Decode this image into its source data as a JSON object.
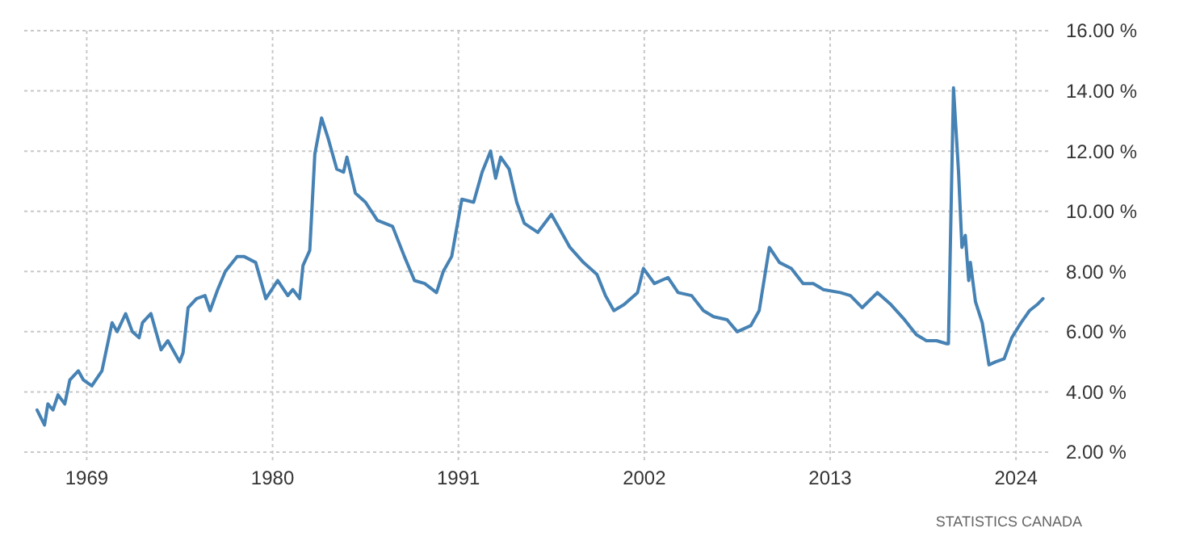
{
  "chart_data": {
    "type": "line",
    "xlim": [
      1965.3,
      2026
    ],
    "xticks": [
      1969,
      1980,
      1991,
      2002,
      2013,
      2024
    ],
    "ylim": [
      2,
      16
    ],
    "yticks": [
      {
        "value": 2,
        "label": "2.00 %"
      },
      {
        "value": 4,
        "label": "4.00 %"
      },
      {
        "value": 6,
        "label": "6.00 %"
      },
      {
        "value": 8,
        "label": "8.00 %"
      },
      {
        "value": 10,
        "label": "10.00 %"
      },
      {
        "value": 12,
        "label": "12.00 %"
      },
      {
        "value": 14,
        "label": "14.00 %"
      },
      {
        "value": 16,
        "label": "16.00 %"
      }
    ],
    "grid": true,
    "annotations": [
      "STATISTICS CANADA"
    ],
    "series": [
      {
        "color": "#4682b4",
        "x": [
          1966.06,
          1966.5,
          1966.7,
          1967.0,
          1967.3,
          1967.7,
          1968.0,
          1968.5,
          1968.8,
          1969.3,
          1969.9,
          1970.5,
          1970.8,
          1971.3,
          1971.7,
          1972.1,
          1972.3,
          1972.8,
          1973.4,
          1973.8,
          1974.2,
          1974.5,
          1974.7,
          1975.0,
          1975.5,
          1976.0,
          1976.3,
          1976.75,
          1977.2,
          1977.9,
          1978.3,
          1979.0,
          1979.6,
          1980.3,
          1980.9,
          1981.2,
          1981.6,
          1981.8,
          1982.2,
          1982.5,
          1982.9,
          1983.3,
          1983.8,
          1984.2,
          1984.4,
          1984.9,
          1985.5,
          1986.2,
          1987.1,
          1987.8,
          1988.4,
          1989.0,
          1989.7,
          1990.1,
          1990.6,
          1991.2,
          1991.9,
          1992.4,
          1992.9,
          1993.2,
          1993.5,
          1994.0,
          1994.45,
          1994.9,
          1995.7,
          1996.5,
          1997.0,
          1997.6,
          1998.4,
          1999.2,
          1999.7,
          2000.2,
          2000.8,
          2001.6,
          2001.95,
          2002.6,
          2003.4,
          2004.0,
          2004.8,
          2005.5,
          2006.1,
          2006.9,
          2007.5,
          2008.3,
          2008.8,
          2009.4,
          2010.0,
          2010.7,
          2011.4,
          2012.0,
          2012.6,
          2013.6,
          2014.2,
          2014.9,
          2015.8,
          2016.6,
          2017.4,
          2018.1,
          2018.7,
          2019.3,
          2019.9,
          2020.0,
          2020.3,
          2020.6,
          2020.8,
          2021.0,
          2021.2,
          2021.3,
          2021.6,
          2022.0,
          2022.4,
          2022.8,
          2023.3,
          2023.75,
          2024.3,
          2024.8,
          2025.25,
          2025.6
        ],
        "values": [
          3.4,
          2.9,
          3.6,
          3.4,
          3.9,
          3.6,
          4.4,
          4.7,
          4.4,
          4.2,
          4.7,
          6.3,
          6.0,
          6.6,
          6.0,
          5.8,
          6.3,
          6.6,
          5.4,
          5.7,
          5.3,
          5.0,
          5.3,
          6.8,
          7.1,
          7.2,
          6.7,
          7.4,
          8.0,
          8.5,
          8.5,
          8.3,
          7.1,
          7.7,
          7.2,
          7.4,
          7.1,
          8.2,
          8.7,
          11.9,
          13.1,
          12.4,
          11.4,
          11.3,
          11.8,
          10.6,
          10.3,
          9.7,
          9.5,
          8.5,
          7.7,
          7.6,
          7.3,
          8.0,
          8.5,
          10.4,
          10.3,
          11.3,
          12.0,
          11.1,
          11.8,
          11.4,
          10.3,
          9.6,
          9.3,
          9.9,
          9.4,
          8.8,
          8.3,
          7.9,
          7.2,
          6.7,
          6.9,
          7.3,
          8.1,
          7.6,
          7.8,
          7.3,
          7.2,
          6.7,
          6.5,
          6.4,
          6.0,
          6.2,
          6.7,
          8.8,
          8.3,
          8.1,
          7.6,
          7.6,
          7.4,
          7.3,
          7.2,
          6.8,
          7.3,
          6.9,
          6.4,
          5.9,
          5.7,
          5.7,
          5.6,
          5.6,
          14.1,
          11.3,
          8.8,
          9.2,
          7.7,
          8.3,
          7.0,
          6.3,
          4.9,
          5.0,
          5.1,
          5.8,
          6.3,
          6.7,
          6.9,
          7.1
        ]
      }
    ]
  }
}
